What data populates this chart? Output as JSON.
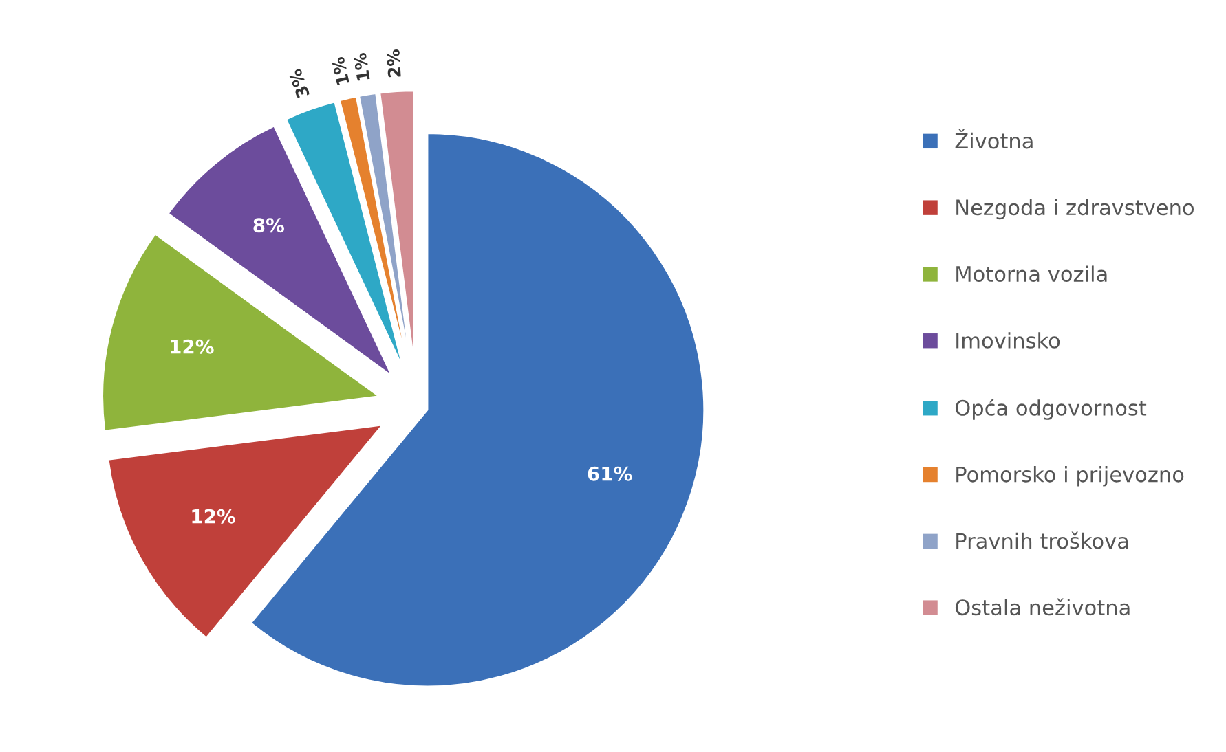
{
  "chart_data": {
    "type": "pie",
    "categories": [
      "Životna",
      "Nezgoda i zdravstveno",
      "Motorna vozila",
      "Imovinsko",
      "Opća odgovornost",
      "Pomorsko i prijevozno",
      "Pravnih troškova",
      "Ostala neživotna"
    ],
    "values": [
      61,
      12,
      12,
      8,
      3,
      1,
      1,
      2
    ],
    "colors": [
      "#3b70b8",
      "#c0403a",
      "#8fb43c",
      "#6c4c9c",
      "#2ea8c6",
      "#e5812e",
      "#8fa3c8",
      "#d28c92"
    ],
    "value_labels": [
      "61%",
      "12%",
      "12%",
      "8%",
      "3%",
      "1%",
      "1%",
      "2%"
    ],
    "legend": "right"
  }
}
